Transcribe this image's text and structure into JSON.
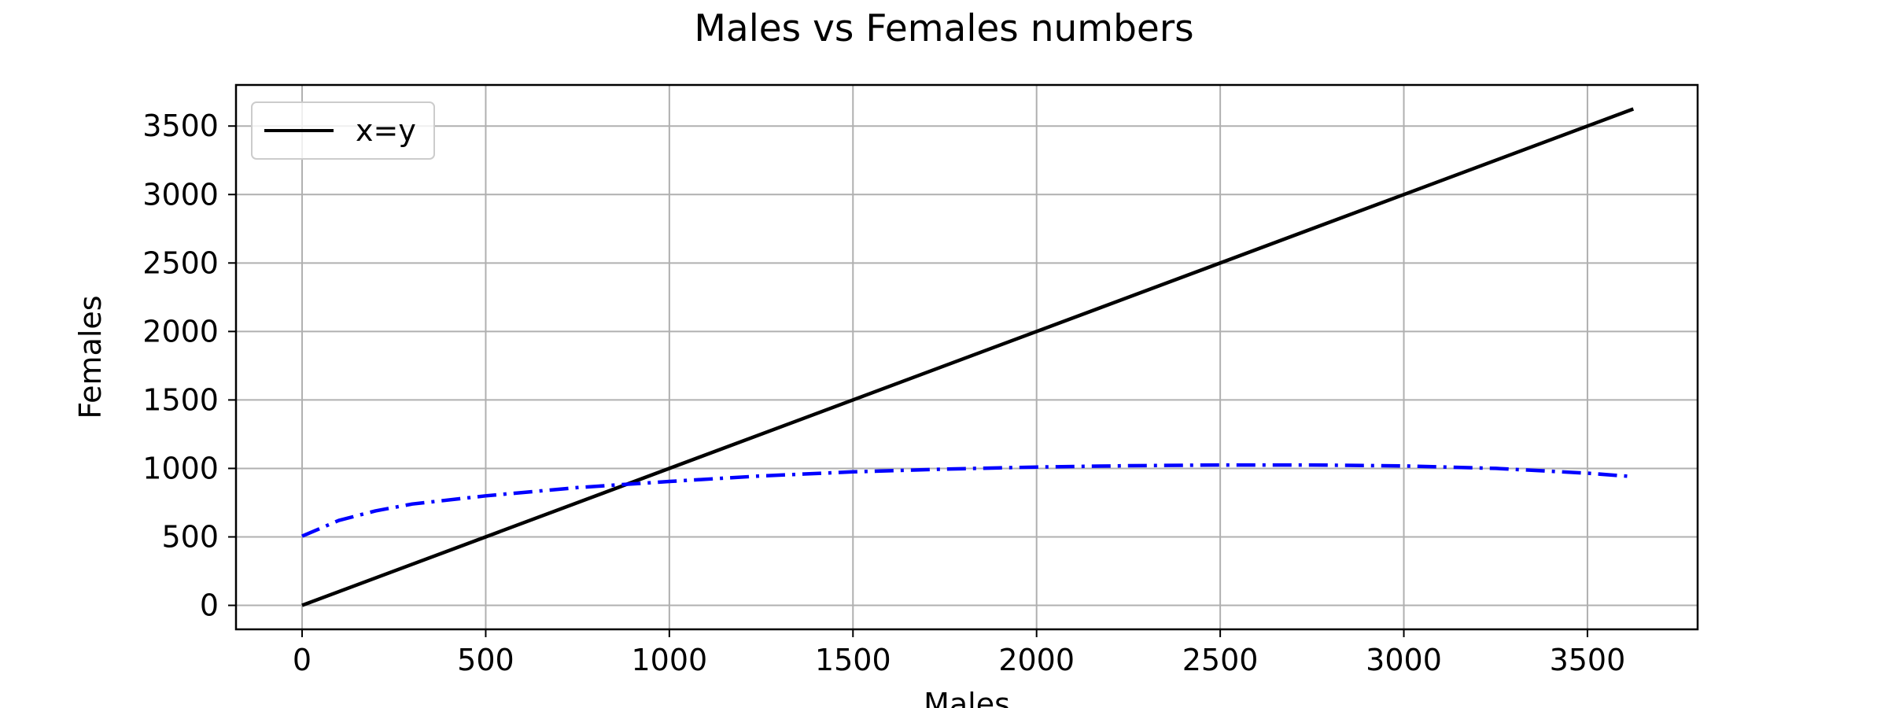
{
  "chart_data": {
    "type": "line",
    "title": "Males vs Females numbers",
    "xlabel": "Males",
    "ylabel": "Females",
    "xlim": [
      -180,
      3800
    ],
    "ylim": [
      -175,
      3800
    ],
    "xticks": [
      0,
      500,
      1000,
      1500,
      2000,
      2500,
      3000,
      3500
    ],
    "yticks": [
      0,
      500,
      1000,
      1500,
      2000,
      2500,
      3000,
      3500
    ],
    "grid": true,
    "legend_position": "top-left",
    "series": [
      {
        "name": "x=y",
        "color": "#000000",
        "style": "solid",
        "x": [
          0,
          3625
        ],
        "y": [
          0,
          3625
        ]
      },
      {
        "name": "",
        "color": "#0000ff",
        "style": "dashdot",
        "x": [
          0,
          100,
          200,
          300,
          500,
          750,
          1000,
          1250,
          1500,
          1750,
          2000,
          2250,
          2500,
          2750,
          3000,
          3250,
          3500,
          3625
        ],
        "y": [
          505,
          620,
          690,
          740,
          800,
          860,
          905,
          945,
          975,
          995,
          1010,
          1020,
          1025,
          1025,
          1018,
          1000,
          965,
          940
        ]
      }
    ]
  }
}
